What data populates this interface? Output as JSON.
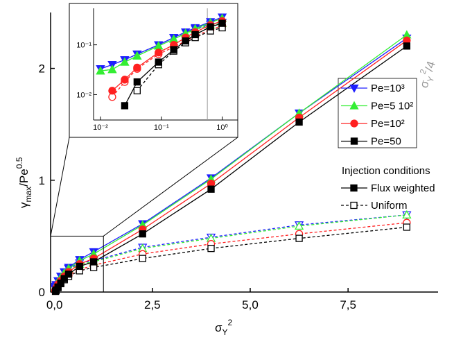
{
  "chart_data": {
    "type": "line",
    "x_label": {
      "base": "σ",
      "sub": "Y",
      "sup": "2"
    },
    "y_label": {
      "base": "γ",
      "sub": "max",
      "mid": "/Pe",
      "sup": "0.5"
    },
    "xlim": [
      -0.1,
      9.8
    ],
    "ylim": [
      0,
      2.5
    ],
    "xticks": [
      {
        "value": 0,
        "label": "0,0"
      },
      {
        "value": 2.5,
        "label": "2,5"
      },
      {
        "value": 5,
        "label": "5,0"
      },
      {
        "value": 7.5,
        "label": "7,5"
      }
    ],
    "yticks": [
      0,
      1,
      2
    ],
    "x": [
      0.01,
      0.0156,
      0.025,
      0.04,
      0.09,
      0.16,
      0.25,
      0.36,
      0.64,
      1,
      2.25,
      4,
      6.25,
      9
    ],
    "series": [
      {
        "name": "Pe=10³",
        "color": "#1f1fff",
        "marker": "triangle-down",
        "values": [
          0.033,
          0.04,
          0.05,
          0.065,
          0.1,
          0.14,
          0.18,
          0.22,
          0.29,
          0.36,
          0.61,
          1.02,
          1.6,
          2.27
        ],
        "uniform_values": [
          0.033,
          0.04,
          0.05,
          0.065,
          0.1,
          0.14,
          0.18,
          0.21,
          0.26,
          0.28,
          0.4,
          0.49,
          0.6,
          0.69
        ]
      },
      {
        "name": "Pe=5 10²",
        "color": "#33ee33",
        "marker": "triangle-up",
        "values": [
          0.03,
          0.032,
          0.045,
          0.06,
          0.095,
          0.13,
          0.17,
          0.21,
          0.28,
          0.34,
          0.6,
          1.01,
          1.6,
          2.3
        ],
        "uniform_values": [
          0.03,
          0.032,
          0.045,
          0.06,
          0.095,
          0.13,
          0.17,
          0.2,
          0.25,
          0.27,
          0.39,
          0.48,
          0.59,
          0.69
        ]
      },
      {
        "name": "Pe=10²",
        "color": "#ff2020",
        "marker": "circle",
        "values": [
          null,
          0.012,
          0.02,
          0.035,
          0.07,
          0.1,
          0.14,
          0.18,
          0.25,
          0.3,
          0.56,
          0.97,
          1.56,
          2.25
        ],
        "uniform_values": [
          null,
          0.009,
          0.018,
          0.033,
          0.065,
          0.09,
          0.12,
          0.15,
          0.2,
          0.24,
          0.34,
          0.43,
          0.52,
          0.62
        ]
      },
      {
        "name": "Pe=50",
        "color": "#000000",
        "marker": "square",
        "values": [
          null,
          null,
          0.006,
          0.018,
          0.045,
          0.08,
          0.12,
          0.16,
          0.23,
          0.27,
          0.52,
          0.92,
          1.52,
          2.2
        ],
        "uniform_values": [
          null,
          null,
          null,
          0.012,
          0.04,
          0.075,
          0.11,
          0.14,
          0.19,
          0.22,
          0.3,
          0.39,
          0.48,
          0.58
        ]
      }
    ],
    "injection_legend": {
      "title": "Injection conditions",
      "entries": [
        "Flux weighted",
        "Uniform"
      ]
    },
    "annotation": {
      "base": "σ",
      "sub": "Y",
      "sup": "2",
      "rest": "/4",
      "color": "#999999"
    },
    "zoom_box": {
      "xlim": [
        -0.1,
        1.25
      ],
      "ylim": [
        0,
        0.5
      ]
    },
    "inset": {
      "log_scale": true,
      "xlim": [
        0.0077,
        1.8
      ],
      "ylim": [
        0.0031,
        0.54
      ],
      "xticks": [
        {
          "value": 0.01,
          "label": "10⁻²"
        },
        {
          "value": 0.1,
          "label": "10⁻¹"
        },
        {
          "value": 1,
          "label": "10⁰"
        }
      ],
      "yticks": [
        {
          "value": 0.01,
          "label": "10⁻²"
        },
        {
          "value": 0.1,
          "label": "10⁻¹"
        }
      ],
      "vline": 0.57
    }
  }
}
